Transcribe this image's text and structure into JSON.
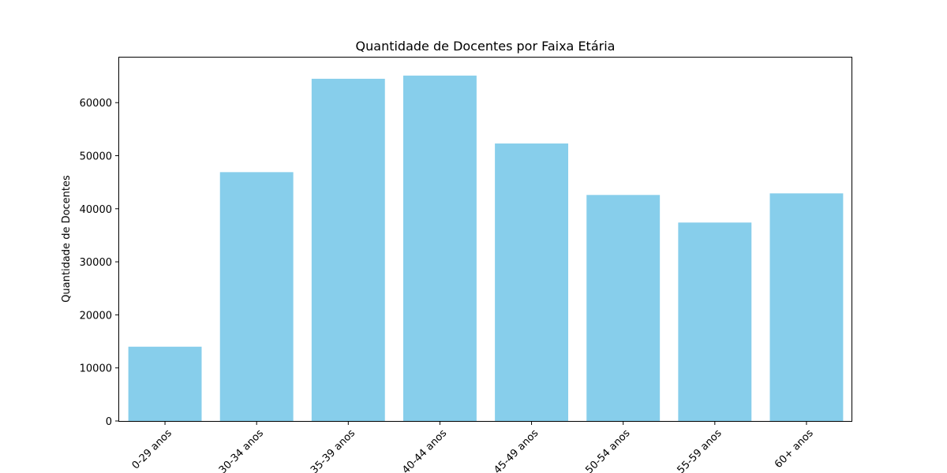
{
  "chart_data": {
    "type": "bar",
    "title": "Quantidade de Docentes por Faixa Etária",
    "xlabel": "",
    "ylabel": "Quantidade de Docentes",
    "categories": [
      "0-29 anos",
      "30-34 anos",
      "35-39 anos",
      "40-44 anos",
      "45-49 anos",
      "50-54 anos",
      "55-59 anos",
      "60+ anos"
    ],
    "values": [
      14000,
      46900,
      64500,
      65100,
      52300,
      42600,
      37400,
      42900
    ],
    "ylim": [
      0,
      68500
    ],
    "yticks": [
      0,
      10000,
      20000,
      30000,
      40000,
      50000,
      60000
    ],
    "ytick_labels": [
      "0",
      "10000",
      "20000",
      "30000",
      "40000",
      "50000",
      "60000"
    ],
    "bar_color": "#87ceeb",
    "grid": false,
    "legend": "none"
  }
}
